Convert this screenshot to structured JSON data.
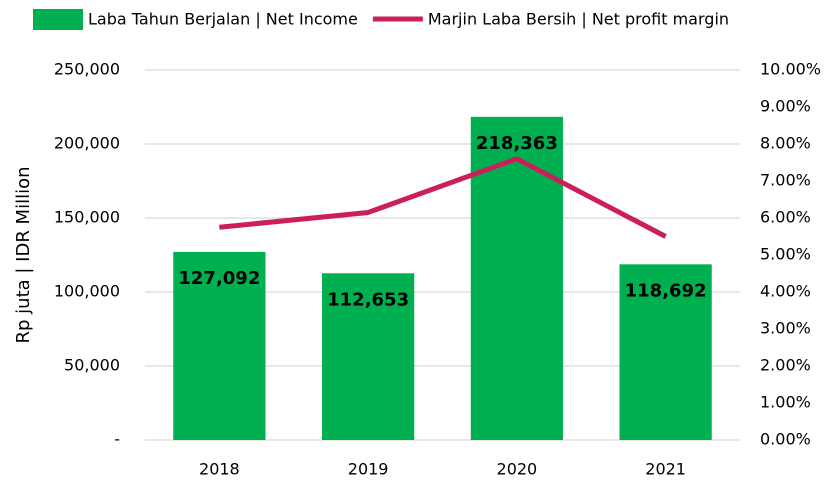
{
  "chart_data": {
    "type": "bar_line",
    "y_axis_label": "Rp juta | IDR Million",
    "categories": [
      "2018",
      "2019",
      "2020",
      "2021"
    ],
    "series": [
      {
        "name": "Laba Tahun Berjalan | Net Income",
        "type": "bar",
        "color": "#00b050",
        "values": [
          127092,
          112653,
          218363,
          118692
        ],
        "value_labels": [
          "127,092",
          "112,653",
          "218,363",
          "118,692"
        ]
      },
      {
        "name": "Marjin Laba Bersih | Net profit margin",
        "type": "line",
        "color": "#cc1f5a",
        "axis": "y2",
        "values": [
          5.75,
          6.15,
          7.6,
          5.5
        ]
      }
    ],
    "ylim": [
      0,
      250000
    ],
    "yticks": [
      {
        "value": 0,
        "label": "-"
      },
      {
        "value": 50000,
        "label": "50,000"
      },
      {
        "value": 100000,
        "label": "100,000"
      },
      {
        "value": 150000,
        "label": "150,000"
      },
      {
        "value": 200000,
        "label": "200,000"
      },
      {
        "value": 250000,
        "label": "250,000"
      }
    ],
    "y2lim": [
      0,
      10
    ],
    "y2ticks": [
      {
        "value": 0,
        "label": "0.00%"
      },
      {
        "value": 1,
        "label": "1.00%"
      },
      {
        "value": 2,
        "label": "2.00%"
      },
      {
        "value": 3,
        "label": "3.00%"
      },
      {
        "value": 4,
        "label": "4.00%"
      },
      {
        "value": 5,
        "label": "5.00%"
      },
      {
        "value": 6,
        "label": "6.00%"
      },
      {
        "value": 7,
        "label": "7.00%"
      },
      {
        "value": 8,
        "label": "8.00%"
      },
      {
        "value": 9,
        "label": "9.00%"
      },
      {
        "value": 10,
        "label": "10.00%"
      }
    ],
    "grid": true,
    "legend": "top"
  }
}
